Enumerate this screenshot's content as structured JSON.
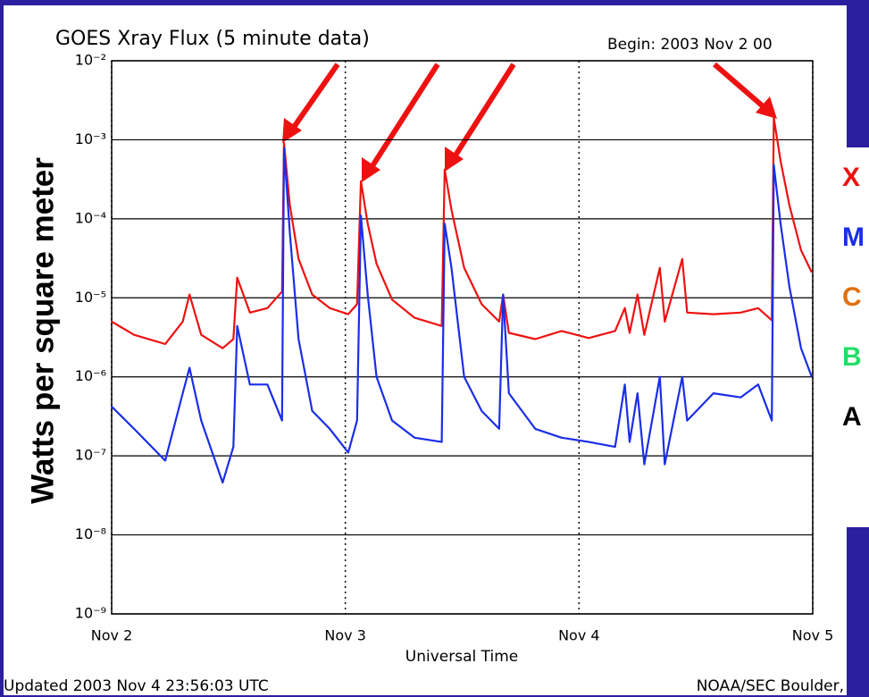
{
  "chart_data": {
    "type": "line",
    "title": "GOES Xray Flux (5 minute data)",
    "subtitle": "Begin:  2003 Nov 2 00",
    "xlabel": "Universal Time",
    "ylabel": "Watts per square meter",
    "footer_left": "Updated 2003 Nov  4 23:56:03 UTC",
    "footer_right": "NOAA/SEC Boulder,",
    "yscale": "log",
    "grid": true,
    "xlim": [
      0,
      72
    ],
    "xticks": [
      {
        "value": 0,
        "label": "Nov 2"
      },
      {
        "value": 24,
        "label": "Nov 3"
      },
      {
        "value": 48,
        "label": "Nov 4"
      },
      {
        "value": 72,
        "label": "Nov 5"
      }
    ],
    "ylim": [
      1e-09,
      0.01
    ],
    "yticks": [
      {
        "value": 1e-09,
        "label": "10⁻⁹"
      },
      {
        "value": 1e-08,
        "label": "10⁻⁸"
      },
      {
        "value": 1e-07,
        "label": "10⁻⁷"
      },
      {
        "value": 1e-06,
        "label": "10⁻⁶"
      },
      {
        "value": 1e-05,
        "label": "10⁻⁵"
      },
      {
        "value": 0.0001,
        "label": "10⁻⁴"
      },
      {
        "value": 0.001,
        "label": "10⁻³"
      },
      {
        "value": 0.01,
        "label": "10⁻²"
      }
    ],
    "x": [
      0,
      2.3,
      5.5,
      7.3,
      8.0,
      9.2,
      11.4,
      12.5,
      12.9,
      14.2,
      16.0,
      17.5,
      17.7,
      18.3,
      19.2,
      20.6,
      22.4,
      24.3,
      25.2,
      25.6,
      26.3,
      27.2,
      28.8,
      31.1,
      33.9,
      34.2,
      34.9,
      36.2,
      38.0,
      39.8,
      40.2,
      40.8,
      43.5,
      46.2,
      49.0,
      51.7,
      52.7,
      53.2,
      54.0,
      54.7,
      56.3,
      56.8,
      58.6,
      59.1,
      61.8,
      64.6,
      66.4,
      67.8,
      68.0,
      68.7,
      69.6,
      70.8,
      71.9
    ],
    "series": [
      {
        "color": "#ee1111",
        "values": [
          5e-06,
          3.4e-06,
          2.6e-06,
          5e-06,
          1.1e-05,
          3.4e-06,
          2.3e-06,
          3e-06,
          1.8e-05,
          6.5e-06,
          7.4e-06,
          1.2e-05,
          0.00091,
          0.00015,
          3.1e-05,
          1.1e-05,
          7.4e-06,
          6.2e-06,
          8.3e-06,
          0.0003,
          8.7e-05,
          2.7e-05,
          9.5e-06,
          5.6e-06,
          4.4e-06,
          0.00042,
          0.00013,
          2.4e-05,
          8.3e-06,
          5e-06,
          1.1e-05,
          3.6e-06,
          3e-06,
          3.8e-06,
          3.1e-06,
          3.8e-06,
          7.4e-06,
          3.6e-06,
          1.1e-05,
          3.4e-06,
          2.4e-05,
          5e-06,
          3.1e-05,
          6.5e-06,
          6.2e-06,
          6.5e-06,
          7.4e-06,
          5.2e-06,
          0.0019,
          0.00054,
          0.00015,
          4e-05,
          2.1e-05
        ]
      },
      {
        "color": "#1a2ee8",
        "values": [
          4.2e-07,
          2.2e-07,
          8.7e-08,
          6.2e-07,
          1.3e-06,
          2.8e-07,
          4.6e-08,
          1.3e-07,
          4.4e-06,
          8e-07,
          8e-07,
          2.8e-07,
          0.00079,
          6.7e-05,
          3e-06,
          3.7e-07,
          2.2e-07,
          1.1e-07,
          2.8e-07,
          0.00011,
          1.1e-05,
          1e-06,
          2.8e-07,
          1.7e-07,
          1.5e-07,
          8.7e-05,
          2.4e-05,
          1e-06,
          3.7e-07,
          2.2e-07,
          1.1e-05,
          6.2e-07,
          2.2e-07,
          1.7e-07,
          1.5e-07,
          1.3e-07,
          8e-07,
          1.5e-07,
          6.2e-07,
          7.8e-08,
          1e-06,
          7.8e-08,
          1e-06,
          2.8e-07,
          6.2e-07,
          5.5e-07,
          8e-07,
          2.8e-07,
          0.00048,
          8.7e-05,
          1.4e-05,
          2.3e-06,
          1e-06
        ]
      }
    ],
    "classes": [
      {
        "label": "X",
        "color": "#ee1111"
      },
      {
        "label": "M",
        "color": "#1a2ee8"
      },
      {
        "label": "C",
        "color": "#e07010"
      },
      {
        "label": "B",
        "color": "#22dd66"
      },
      {
        "label": "A",
        "color": "#000000"
      }
    ]
  }
}
